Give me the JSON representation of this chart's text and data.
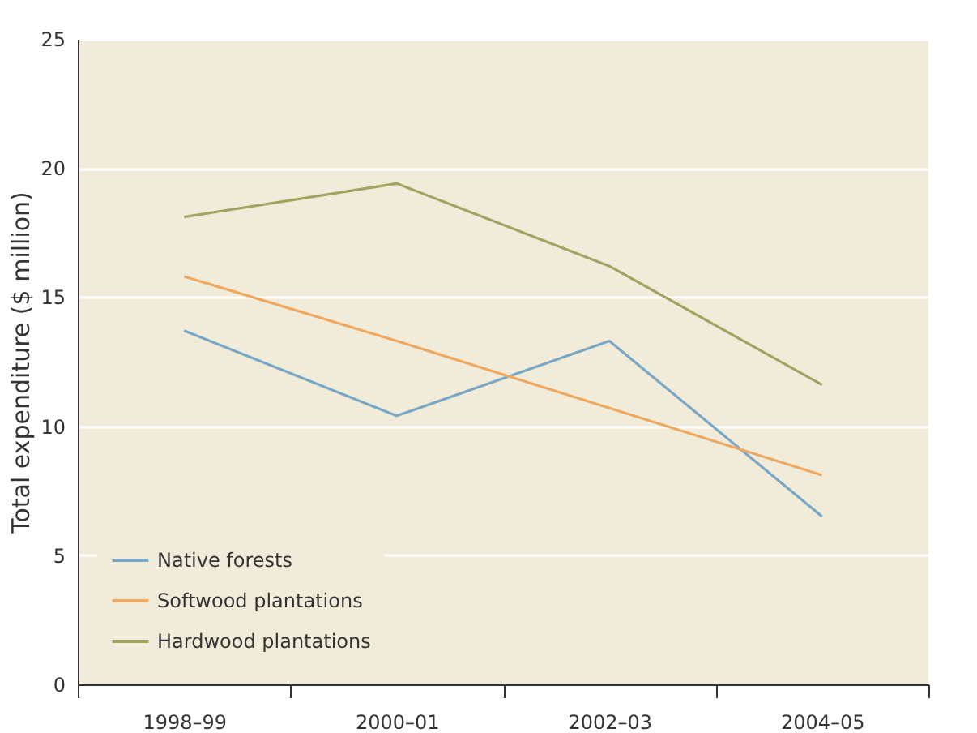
{
  "chart_data": {
    "type": "line",
    "ylabel": "Total expenditure ($ million)",
    "categories": [
      "1998–99",
      "2000–01",
      "2002–03",
      "2004–05"
    ],
    "series": [
      {
        "name": "Native forests",
        "color": "#7ba7c4",
        "values": [
          13.7,
          10.4,
          13.3,
          6.5
        ]
      },
      {
        "name": "Softwood plantations",
        "color": "#eea862",
        "values": [
          15.8,
          13.3,
          10.7,
          8.1
        ]
      },
      {
        "name": "Hardwood plantations",
        "color": "#a3a263",
        "values": [
          18.1,
          19.4,
          16.2,
          11.6
        ]
      }
    ],
    "ylim": [
      0,
      25
    ],
    "yticks": [
      0,
      5,
      10,
      15,
      20,
      25
    ],
    "grid": "y",
    "legend": "bottom left",
    "marker": "none",
    "line_style": "solid"
  }
}
